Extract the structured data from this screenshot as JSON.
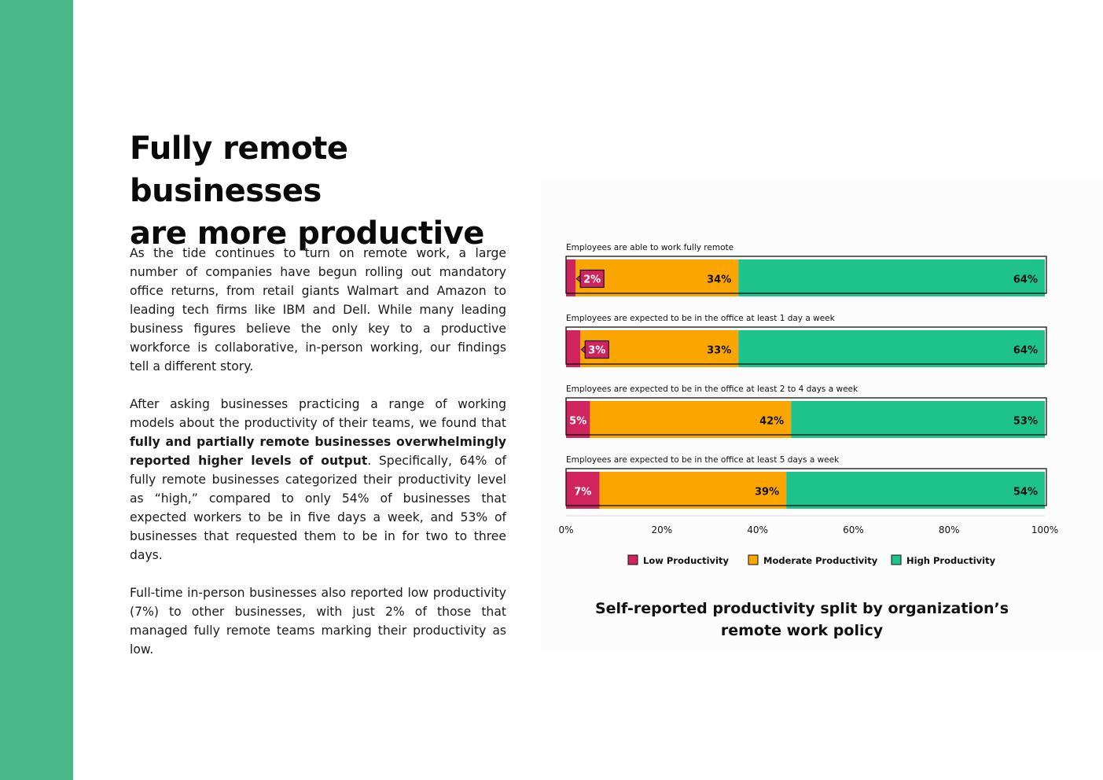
{
  "page": {
    "heading_line1": "Fully remote businesses",
    "heading_line2": "are more productive",
    "paragraphs": {
      "p1": "As the tide continues to turn on remote work, a large number of companies have begun rolling out mandatory office returns, from retail giants Walmart and Amazon to leading tech firms like IBM and Dell. While many leading business figures believe the only key to a productive workforce is collaborative, in-person working, our findings tell a different story.",
      "p2_pre": "After asking businesses practicing a range of working models about the productivity of their teams, we found that ",
      "p2_bold": "fully and partially remote businesses overwhelmingly reported higher levels of output",
      "p2_post": ". Specifically, 64% of fully remote businesses categorized their productivity level as “high,” compared to only 54% of businesses that expected workers to be in five days a week, and 53% of businesses that requested them to be in for two to three days.",
      "p3": "Full-time in-person businesses also reported low productivity (7%) to other businesses, with just 2% of those that managed fully remote teams marking their productivity as low."
    },
    "colors": {
      "sidebar": "#4cb78a",
      "low": "#d0245e",
      "moderate": "#fba500",
      "high": "#1dc38b"
    }
  },
  "chart_data": {
    "type": "bar",
    "orientation": "horizontal",
    "stacked": true,
    "title": "Self-reported productivity split by organization’s remote work policy",
    "categories": [
      "Employees are able to work fully remote",
      "Employees are expected to be in the office at least 1 day a week",
      "Employees are expected to be in the office at least 2 to 4 days a week",
      "Employees are expected to be in the office at least 5 days a week"
    ],
    "series": [
      {
        "name": "Low Productivity",
        "values": [
          2,
          3,
          5,
          7
        ],
        "labels": [
          "2%",
          "3%",
          "5%",
          "7%"
        ],
        "color": "#d0245e"
      },
      {
        "name": "Moderate Productivity",
        "values": [
          34,
          33,
          42,
          39
        ],
        "labels": [
          "34%",
          "33%",
          "42%",
          "39%"
        ],
        "color": "#fba500"
      },
      {
        "name": "High Productivity",
        "values": [
          64,
          64,
          53,
          54
        ],
        "labels": [
          "64%",
          "64%",
          "53%",
          "54%"
        ],
        "color": "#1dc38b"
      }
    ],
    "xlim": [
      0,
      100
    ],
    "x_ticks": [
      "0%",
      "20%",
      "40%",
      "60%",
      "80%",
      "100%"
    ],
    "legend_position": "bottom",
    "grid": false
  }
}
